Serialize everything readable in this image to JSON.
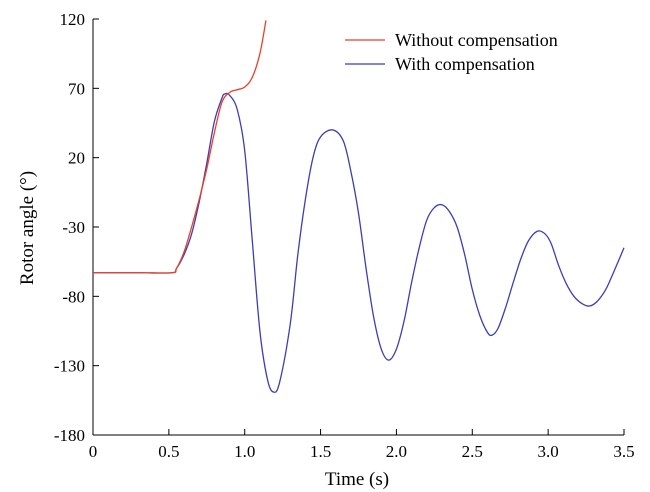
{
  "chart_data": {
    "type": "line",
    "title": "",
    "xlabel": "Time (s)",
    "ylabel": "Rotor angle (°)",
    "xlim": [
      0,
      3.5
    ],
    "ylim": [
      -180,
      120
    ],
    "xticks": [
      0,
      0.5,
      1.0,
      1.5,
      2.0,
      2.5,
      3.0,
      3.5
    ],
    "xtick_labels": [
      "0",
      "0.5",
      "1.0",
      "1.5",
      "2.0",
      "2.5",
      "3.0",
      "3.5"
    ],
    "yticks": [
      -180,
      -130,
      -80,
      -30,
      20,
      70,
      120
    ],
    "ytick_labels": [
      "-180",
      "-130",
      "-80",
      "-30",
      "20",
      "70",
      "120"
    ],
    "grid": false,
    "legend_position": "top-right",
    "series": [
      {
        "name": "Without compensation",
        "color": "#e8402a",
        "points": [
          [
            0,
            -63
          ],
          [
            0.3,
            -63
          ],
          [
            0.52,
            -63
          ],
          [
            0.55,
            -60
          ],
          [
            0.6,
            -48
          ],
          [
            0.65,
            -30
          ],
          [
            0.7,
            -10
          ],
          [
            0.75,
            12
          ],
          [
            0.8,
            38
          ],
          [
            0.85,
            60
          ],
          [
            0.9,
            67
          ],
          [
            0.95,
            69
          ],
          [
            1.0,
            71
          ],
          [
            1.05,
            78
          ],
          [
            1.1,
            95
          ],
          [
            1.14,
            119
          ]
        ]
      },
      {
        "name": "With compensation",
        "color": "#3d3db5",
        "points": [
          [
            0,
            -63
          ],
          [
            0.3,
            -63
          ],
          [
            0.52,
            -63
          ],
          [
            0.55,
            -60
          ],
          [
            0.6,
            -50
          ],
          [
            0.65,
            -35
          ],
          [
            0.7,
            -12
          ],
          [
            0.75,
            16
          ],
          [
            0.8,
            46
          ],
          [
            0.85,
            63
          ],
          [
            0.87,
            66
          ],
          [
            0.9,
            65
          ],
          [
            0.95,
            55
          ],
          [
            1.0,
            25
          ],
          [
            1.05,
            -40
          ],
          [
            1.1,
            -105
          ],
          [
            1.15,
            -140
          ],
          [
            1.19,
            -149
          ],
          [
            1.23,
            -142
          ],
          [
            1.3,
            -100
          ],
          [
            1.35,
            -50
          ],
          [
            1.4,
            -10
          ],
          [
            1.45,
            20
          ],
          [
            1.5,
            35
          ],
          [
            1.58,
            40
          ],
          [
            1.65,
            32
          ],
          [
            1.7,
            10
          ],
          [
            1.75,
            -20
          ],
          [
            1.8,
            -60
          ],
          [
            1.85,
            -95
          ],
          [
            1.9,
            -118
          ],
          [
            1.95,
            -126
          ],
          [
            2.0,
            -118
          ],
          [
            2.05,
            -98
          ],
          [
            2.1,
            -70
          ],
          [
            2.15,
            -45
          ],
          [
            2.2,
            -25
          ],
          [
            2.25,
            -16
          ],
          [
            2.3,
            -14
          ],
          [
            2.35,
            -19
          ],
          [
            2.4,
            -30
          ],
          [
            2.45,
            -50
          ],
          [
            2.5,
            -75
          ],
          [
            2.55,
            -94
          ],
          [
            2.6,
            -106
          ],
          [
            2.63,
            -108
          ],
          [
            2.67,
            -103
          ],
          [
            2.72,
            -88
          ],
          [
            2.77,
            -70
          ],
          [
            2.82,
            -53
          ],
          [
            2.87,
            -40
          ],
          [
            2.93,
            -33
          ],
          [
            2.98,
            -35
          ],
          [
            3.02,
            -42
          ],
          [
            3.07,
            -58
          ],
          [
            3.12,
            -71
          ],
          [
            3.17,
            -80
          ],
          [
            3.22,
            -85
          ],
          [
            3.27,
            -87
          ],
          [
            3.32,
            -84
          ],
          [
            3.38,
            -75
          ],
          [
            3.43,
            -63
          ],
          [
            3.5,
            -45
          ]
        ]
      }
    ]
  }
}
